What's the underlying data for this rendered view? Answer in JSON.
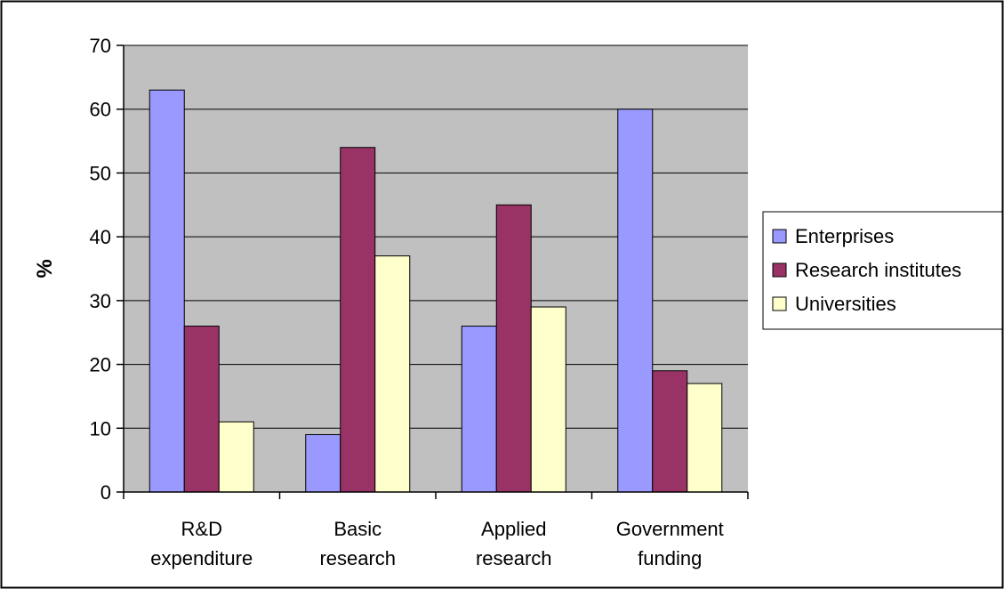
{
  "chart_data": {
    "type": "bar",
    "title": "",
    "xlabel": "",
    "ylabel": "%",
    "ylim": [
      0,
      70
    ],
    "yticks": [
      0,
      10,
      20,
      30,
      40,
      50,
      60,
      70
    ],
    "grid": true,
    "legend_position": "right",
    "categories": [
      [
        "R&D",
        "expenditure"
      ],
      [
        "Basic",
        "research"
      ],
      [
        "Applied",
        "research"
      ],
      [
        "Government",
        "funding"
      ]
    ],
    "series": [
      {
        "name": "Enterprises",
        "color": "#9999ff",
        "values": [
          63,
          9,
          26,
          60
        ]
      },
      {
        "name": "Research institutes",
        "color": "#993366",
        "values": [
          26,
          54,
          45,
          19
        ]
      },
      {
        "name": "Universities",
        "color": "#ffffcc",
        "values": [
          11,
          37,
          29,
          17
        ]
      }
    ],
    "colors": {
      "plot_background": "#c0c0c0",
      "outline": "#000000"
    }
  }
}
